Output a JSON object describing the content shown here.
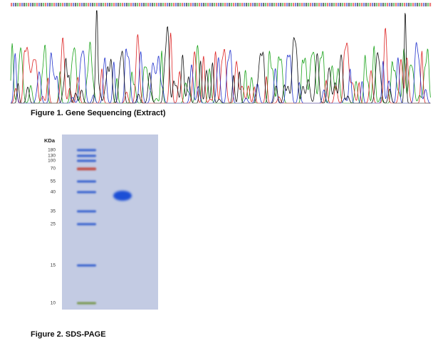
{
  "figure1": {
    "caption": "Figure 1. Gene Sequencing (Extract)"
  },
  "figure2": {
    "caption": "Figure 2. SDS-PAGE",
    "unit_label": "KDa",
    "ladder_labels": [
      "180",
      "130",
      "100",
      "70",
      "55",
      "40",
      "35",
      "25",
      "15",
      "10"
    ]
  }
}
